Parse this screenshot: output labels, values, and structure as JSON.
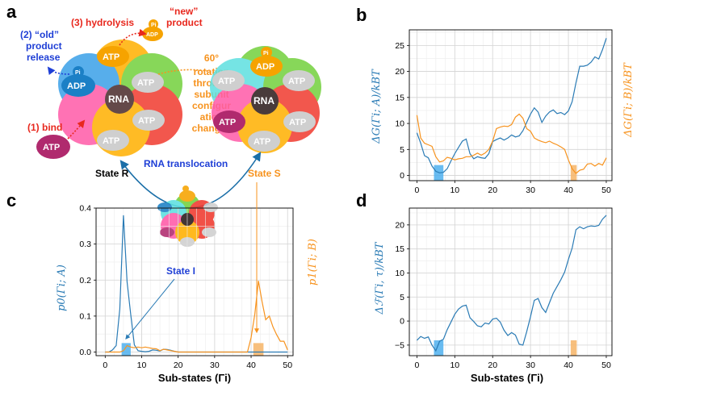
{
  "panels": {
    "a": "a",
    "b": "b",
    "c": "c",
    "d": "d"
  },
  "colors": {
    "blue": "#2a7bb5",
    "orange": "#f7931e",
    "red_label": "#e8281e",
    "blue_label": "#1f3fd6",
    "highlight_blue": "#4fb0ee",
    "highlight_orange": "#f6b466"
  },
  "diagram": {
    "hydrolysis": "(3) hydrolysis",
    "new_product_1": "“new”",
    "new_product_2": "product",
    "old_release_1": "(2) “old”",
    "old_release_2": "product",
    "old_release_3": "release",
    "bind": "(1) bind",
    "rotation_lines": [
      "60°",
      "rotation",
      "through",
      "subunit",
      "configur",
      "ation",
      "changes"
    ],
    "state_r": "State R",
    "state_s": "State S",
    "state_i": "State I",
    "rna_translocation": "RNA translocation",
    "atp": "ATP",
    "adp": "ADP",
    "rna": "RNA",
    "pi": "Pi"
  },
  "chart_data": [
    {
      "id": "b",
      "type": "line",
      "ylabel_left": "ΔG(Γi; A)/kBT",
      "ylabel_right": "ΔG(Γi; B)/kBT",
      "xlim": [
        -2,
        51.5
      ],
      "ylim": [
        -1,
        28
      ],
      "xticks": [
        "0",
        "10",
        "20",
        "30",
        "40",
        "50"
      ],
      "yticks": [
        "0",
        "5",
        "10",
        "15",
        "20",
        "25"
      ],
      "grid": true,
      "series": [
        {
          "name": "A",
          "color": "#2a7bb5",
          "x": [
            0,
            1,
            2,
            3,
            4,
            5,
            6,
            7,
            8,
            9,
            10,
            11,
            12,
            13,
            14,
            15,
            16,
            17,
            18,
            19,
            20,
            21,
            22,
            23,
            24,
            25,
            26,
            27,
            28,
            29,
            30,
            31,
            32,
            33,
            34,
            35,
            36,
            37,
            38,
            39,
            40,
            41,
            42,
            43,
            44,
            45,
            46,
            47,
            48,
            49,
            50
          ],
          "y": [
            8.2,
            6.2,
            3.8,
            3.4,
            1.8,
            0.8,
            0.5,
            0.6,
            1.3,
            2.8,
            4.2,
            5.4,
            6.6,
            7.0,
            4.2,
            3.2,
            3.6,
            3.4,
            3.3,
            4.2,
            6.5,
            6.9,
            7.2,
            6.8,
            7.2,
            7.8,
            7.4,
            7.6,
            8.6,
            10.2,
            11.8,
            13.0,
            12.2,
            10.2,
            11.4,
            12.2,
            12.6,
            11.9,
            12.1,
            11.7,
            12.4,
            14.2,
            17.8,
            21.0,
            21.0,
            21.2,
            21.8,
            22.8,
            22.4,
            24.2,
            26.4
          ]
        },
        {
          "name": "B",
          "color": "#f7931e",
          "x": [
            0,
            1,
            2,
            3,
            4,
            5,
            6,
            7,
            8,
            9,
            10,
            11,
            12,
            13,
            14,
            15,
            16,
            17,
            18,
            19,
            20,
            21,
            22,
            23,
            24,
            25,
            26,
            27,
            28,
            29,
            30,
            31,
            32,
            33,
            34,
            35,
            36,
            37,
            38,
            39,
            40,
            41,
            42,
            43,
            44,
            45,
            46,
            47,
            48,
            49,
            50
          ],
          "y": [
            11.6,
            7.2,
            6.2,
            5.9,
            5.6,
            3.6,
            2.6,
            2.8,
            3.5,
            3.3,
            3.0,
            3.2,
            3.3,
            3.6,
            3.6,
            3.9,
            4.3,
            3.9,
            4.3,
            5.0,
            6.6,
            9.0,
            9.3,
            9.5,
            9.4,
            9.8,
            11.2,
            11.8,
            11.0,
            9.0,
            8.5,
            7.2,
            6.8,
            6.5,
            6.3,
            6.6,
            6.2,
            5.9,
            5.5,
            5.0,
            3.0,
            1.3,
            0.4,
            1.0,
            1.2,
            2.2,
            2.3,
            1.8,
            2.3,
            2.0,
            3.4
          ]
        }
      ],
      "highlights": [
        {
          "x": [
            4.5,
            7.0
          ],
          "color": "#4fb0ee"
        },
        {
          "x": [
            40.6,
            42.2
          ],
          "color": "#f6b466"
        }
      ]
    },
    {
      "id": "c",
      "type": "line",
      "xlabel": "Sub-states (Γi)",
      "ylabel_left": "p0(Γi; A)",
      "ylabel_right": "p1(Γi; B)",
      "xlim": [
        -2.5,
        51.5
      ],
      "ylim": [
        -0.01,
        0.4
      ],
      "xticks": [
        "0",
        "10",
        "20",
        "30",
        "40",
        "50"
      ],
      "yticks": [
        "0.0",
        "0.1",
        "0.2",
        "0.3",
        "0.4"
      ],
      "grid": true,
      "series": [
        {
          "name": "A",
          "color": "#2a7bb5",
          "x": [
            0,
            1,
            2,
            3,
            4,
            5,
            6,
            7,
            8,
            9,
            10,
            11,
            12,
            13,
            14,
            15,
            16,
            17,
            18,
            19,
            20,
            21,
            22,
            23,
            24,
            25,
            26,
            27,
            28,
            29,
            30,
            31,
            32,
            33,
            34,
            35,
            36,
            37,
            38,
            39,
            40,
            41,
            42,
            43,
            44,
            45,
            46,
            47,
            48,
            49,
            50
          ],
          "y": [
            0.0,
            0.0,
            0.006,
            0.018,
            0.12,
            0.38,
            0.195,
            0.105,
            0.02,
            0.004,
            0.002,
            0.001,
            0.002,
            0.006,
            0.005,
            0.003,
            0.008,
            0.007,
            0.005,
            0.002,
            0.0,
            0.0,
            0.0,
            0.0,
            0.0,
            0.0,
            0.0,
            0.0,
            0.0,
            0.0,
            0.0,
            0.0,
            0.0,
            0.0,
            0.0,
            0.0,
            0.0,
            0.0,
            0.0,
            0.0,
            0.0,
            0.0,
            0.0,
            0.0,
            0.0,
            0.0,
            0.0,
            0.0,
            0.0,
            0.0,
            0.0
          ]
        },
        {
          "name": "B",
          "color": "#f7931e",
          "x": [
            0,
            1,
            2,
            3,
            4,
            5,
            6,
            7,
            8,
            9,
            10,
            11,
            12,
            13,
            14,
            15,
            16,
            17,
            18,
            19,
            20,
            21,
            22,
            23,
            24,
            25,
            26,
            27,
            28,
            29,
            30,
            31,
            32,
            33,
            34,
            35,
            36,
            37,
            38,
            39,
            40,
            41,
            42,
            43,
            44,
            45,
            46,
            47,
            48,
            49,
            50
          ],
          "y": [
            0.0,
            0.0,
            0.0,
            0.0,
            0.0,
            0.004,
            0.018,
            0.014,
            0.012,
            0.014,
            0.012,
            0.014,
            0.012,
            0.01,
            0.009,
            0.004,
            0.008,
            0.006,
            0.004,
            0.002,
            0.0,
            0.0,
            0.0,
            0.0,
            0.0,
            0.0,
            0.0,
            0.0,
            0.0,
            0.0,
            0.0,
            0.0,
            0.0,
            0.0,
            0.0,
            0.0,
            0.0,
            0.0,
            0.0,
            0.0,
            0.04,
            0.105,
            0.198,
            0.14,
            0.09,
            0.1,
            0.07,
            0.048,
            0.03,
            0.03,
            0.006
          ]
        }
      ],
      "highlights": [
        {
          "x": [
            4.5,
            7.0
          ],
          "color": "#4fb0ee"
        },
        {
          "x": [
            40.6,
            43.4
          ],
          "color": "#f6b466"
        }
      ]
    },
    {
      "id": "d",
      "type": "line",
      "xlabel": "Sub-states (Γi)",
      "ylabel_left": "Δℱ(Γi, τ)/kBT",
      "xlim": [
        -2,
        51.5
      ],
      "ylim": [
        -7.2,
        23.5
      ],
      "xticks": [
        "0",
        "10",
        "20",
        "30",
        "40",
        "50"
      ],
      "yticks": [
        "−5",
        "0",
        "5",
        "10",
        "15",
        "20"
      ],
      "grid": true,
      "series": [
        {
          "name": "F",
          "color": "#2a7bb5",
          "x": [
            0,
            1,
            2,
            3,
            4,
            5,
            6,
            7,
            8,
            9,
            10,
            11,
            12,
            13,
            14,
            15,
            16,
            17,
            18,
            19,
            20,
            21,
            22,
            23,
            24,
            25,
            26,
            27,
            28,
            29,
            30,
            31,
            32,
            33,
            34,
            35,
            36,
            37,
            38,
            39,
            40,
            41,
            42,
            43,
            44,
            45,
            46,
            47,
            48,
            49,
            50
          ],
          "y": [
            -4.0,
            -3.2,
            -3.6,
            -3.3,
            -5.0,
            -6.2,
            -4.2,
            -3.8,
            -1.8,
            -0.2,
            1.4,
            2.5,
            3.1,
            3.3,
            0.7,
            -0.1,
            -1.0,
            -1.2,
            -0.4,
            -0.6,
            0.4,
            0.6,
            -0.2,
            -1.9,
            -3.0,
            -2.4,
            -2.9,
            -4.8,
            -5.0,
            -2.2,
            0.9,
            4.3,
            4.7,
            2.8,
            1.8,
            3.8,
            5.8,
            7.2,
            8.6,
            10.2,
            12.8,
            15.2,
            19.0,
            19.6,
            19.2,
            19.6,
            19.8,
            19.7,
            19.9,
            21.2,
            22.0
          ]
        }
      ],
      "highlights": [
        {
          "x": [
            4.5,
            7.0
          ],
          "color": "#4fb0ee"
        },
        {
          "x": [
            40.6,
            42.2
          ],
          "color": "#f6b466"
        }
      ]
    }
  ]
}
